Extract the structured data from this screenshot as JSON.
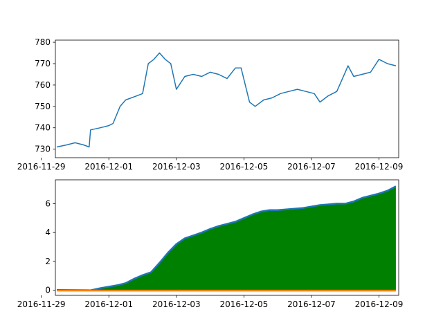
{
  "chart_data": [
    {
      "type": "line",
      "x_type": "datetime",
      "xlim": [
        "2016-11-29T10:00",
        "2016-12-09T14:00"
      ],
      "ylim": [
        726,
        781
      ],
      "xticks": [
        "2016-11-29",
        "2016-12-01",
        "2016-12-03",
        "2016-12-05",
        "2016-12-07",
        "2016-12-09"
      ],
      "yticks": [
        730,
        740,
        750,
        760,
        770,
        780
      ],
      "grid": false,
      "color": "#1f77b4",
      "series": [
        {
          "x": [
            "2016-11-29T11:00",
            "2016-11-29T18:00",
            "2016-11-30T00:00",
            "2016-11-30T06:00",
            "2016-11-30T10:00",
            "2016-11-30T11:00",
            "2016-11-30T18:00",
            "2016-12-01T00:00",
            "2016-12-01T03:00",
            "2016-12-01T08:00",
            "2016-12-01T12:00",
            "2016-12-01T20:00",
            "2016-12-02T00:00",
            "2016-12-02T04:00",
            "2016-12-02T08:00",
            "2016-12-02T12:00",
            "2016-12-02T16:00",
            "2016-12-02T20:00",
            "2016-12-03T00:00",
            "2016-12-03T02:00",
            "2016-12-03T06:00",
            "2016-12-03T12:00",
            "2016-12-03T18:00",
            "2016-12-04T00:00",
            "2016-12-04T06:00",
            "2016-12-04T12:00",
            "2016-12-04T18:00",
            "2016-12-04T22:00",
            "2016-12-05T01:00",
            "2016-12-05T04:00",
            "2016-12-05T08:00",
            "2016-12-05T14:00",
            "2016-12-05T20:00",
            "2016-12-06T02:00",
            "2016-12-06T08:00",
            "2016-12-06T14:00",
            "2016-12-06T20:00",
            "2016-12-07T02:00",
            "2016-12-07T06:00",
            "2016-12-07T12:00",
            "2016-12-07T18:00",
            "2016-12-08T00:00",
            "2016-12-08T02:00",
            "2016-12-08T06:00",
            "2016-12-08T12:00",
            "2016-12-08T18:00",
            "2016-12-09T00:00",
            "2016-12-09T06:00",
            "2016-12-09T12:00"
          ],
          "y": [
            731,
            732,
            733,
            732,
            731,
            739,
            740,
            741,
            742,
            750,
            753,
            755,
            756,
            770,
            772,
            775,
            772,
            770,
            758,
            760,
            764,
            765,
            764,
            766,
            765,
            763,
            768,
            768,
            760,
            752,
            750,
            753,
            754,
            756,
            757,
            758,
            757,
            756,
            752,
            755,
            757,
            766,
            769,
            764,
            765,
            766,
            772,
            770,
            769
          ]
        }
      ]
    },
    {
      "type": "area",
      "x_type": "datetime",
      "xlim": [
        "2016-11-29T10:00",
        "2016-12-09T14:00"
      ],
      "ylim": [
        -0.35,
        7.65
      ],
      "xticks": [
        "2016-11-29",
        "2016-12-01",
        "2016-12-03",
        "2016-12-05",
        "2016-12-07",
        "2016-12-09"
      ],
      "yticks": [
        0,
        2,
        4,
        6
      ],
      "grid": false,
      "fill_color": "#008000",
      "series": [
        {
          "color": "#1f77b4",
          "x": [
            "2016-11-29T11:00",
            "2016-11-30T00:00",
            "2016-11-30T11:00",
            "2016-11-30T18:00",
            "2016-12-01T00:00",
            "2016-12-01T06:00",
            "2016-12-01T12:00",
            "2016-12-01T18:00",
            "2016-12-02T00:00",
            "2016-12-02T06:00",
            "2016-12-02T12:00",
            "2016-12-02T18:00",
            "2016-12-03T00:00",
            "2016-12-03T06:00",
            "2016-12-03T12:00",
            "2016-12-03T18:00",
            "2016-12-04T00:00",
            "2016-12-04T06:00",
            "2016-12-04T12:00",
            "2016-12-04T18:00",
            "2016-12-05T00:00",
            "2016-12-05T06:00",
            "2016-12-05T12:00",
            "2016-12-05T18:00",
            "2016-12-06T00:00",
            "2016-12-06T06:00",
            "2016-12-06T12:00",
            "2016-12-06T18:00",
            "2016-12-07T00:00",
            "2016-12-07T06:00",
            "2016-12-07T12:00",
            "2016-12-07T18:00",
            "2016-12-08T00:00",
            "2016-12-08T06:00",
            "2016-12-08T12:00",
            "2016-12-08T18:00",
            "2016-12-09T00:00",
            "2016-12-09T06:00",
            "2016-12-09T12:00"
          ],
          "y": [
            0,
            0,
            0,
            0.15,
            0.25,
            0.35,
            0.5,
            0.8,
            1.05,
            1.25,
            1.9,
            2.6,
            3.2,
            3.6,
            3.8,
            4.0,
            4.25,
            4.45,
            4.6,
            4.75,
            5.0,
            5.25,
            5.45,
            5.55,
            5.55,
            5.6,
            5.65,
            5.7,
            5.8,
            5.9,
            5.95,
            6.0,
            6.0,
            6.15,
            6.4,
            6.55,
            6.7,
            6.9,
            7.2
          ]
        },
        {
          "color": "#d62728",
          "x": [
            "2016-11-29T11:00",
            "2016-11-30T11:00"
          ],
          "y": [
            0.02,
            0.0
          ]
        },
        {
          "color": "#ff7f0e",
          "x": [
            "2016-11-29T11:00",
            "2016-12-09T12:00"
          ],
          "y": [
            -0.02,
            -0.02
          ]
        }
      ]
    }
  ]
}
